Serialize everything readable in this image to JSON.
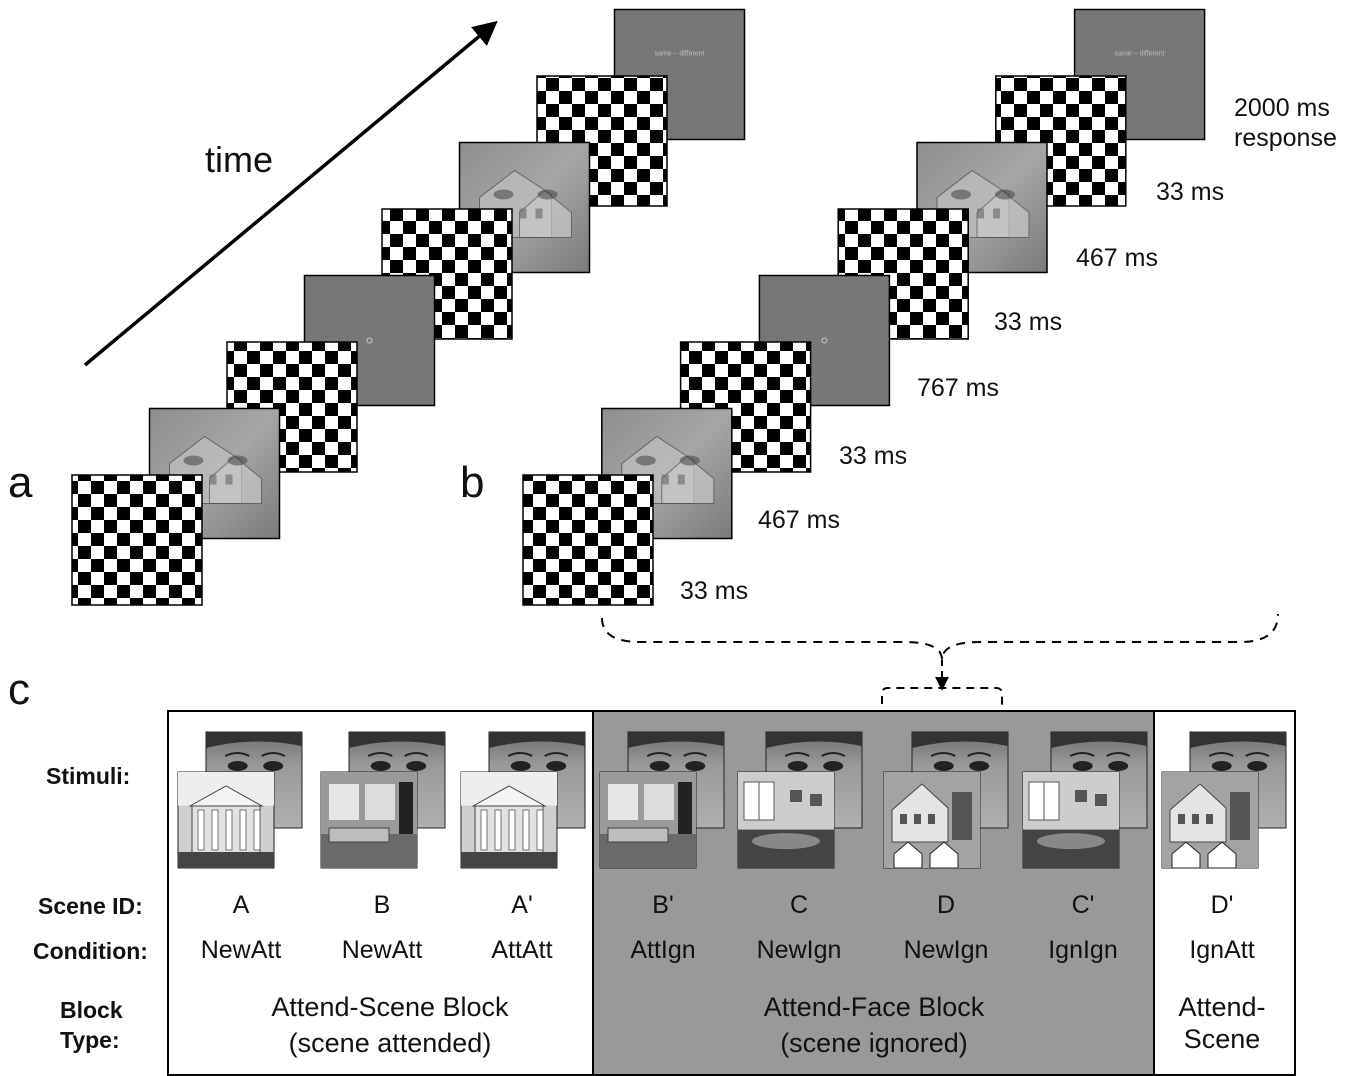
{
  "panels": {
    "a": "a",
    "b": "b",
    "c": "c"
  },
  "time_label": "time",
  "panel_a_sequence": [
    "mask",
    "composite",
    "mask",
    "fixation",
    "mask",
    "composite",
    "mask",
    "response"
  ],
  "panel_b_sequence": [
    "mask",
    "composite",
    "mask",
    "fixation",
    "mask",
    "composite",
    "mask",
    "response"
  ],
  "response_screen_text": "same – different",
  "durations": [
    "33 ms",
    "467 ms",
    "33 ms",
    "767 ms",
    "33 ms",
    "467 ms",
    "33 ms"
  ],
  "response_duration": {
    "line1": "2000 ms",
    "line2": "response"
  },
  "row_headers": {
    "stimuli": "Stimuli:",
    "scene_id": "Scene ID:",
    "condition": "Condition:",
    "block_type_1": "Block",
    "block_type_2": "Type:"
  },
  "columns": [
    {
      "scene_id": "A",
      "condition": "NewAtt",
      "scene": "building-columns",
      "face": "face-1"
    },
    {
      "scene_id": "B",
      "condition": "NewAtt",
      "scene": "interior-room",
      "face": "face-2"
    },
    {
      "scene_id": "A'",
      "condition": "AttAtt",
      "scene": "building-columns",
      "face": "face-3"
    },
    {
      "scene_id": "B'",
      "condition": "AttIgn",
      "scene": "interior-room",
      "face": "face-4"
    },
    {
      "scene_id": "C",
      "condition": "NewIgn",
      "scene": "room-windows",
      "face": "face-5"
    },
    {
      "scene_id": "D",
      "condition": "NewIgn",
      "scene": "house-gables",
      "face": "face-6"
    },
    {
      "scene_id": "C'",
      "condition": "IgnIgn",
      "scene": "room-windows",
      "face": "face-7"
    },
    {
      "scene_id": "D'",
      "condition": "IgnAtt",
      "scene": "house-gables",
      "face": "face-8"
    }
  ],
  "blocks": [
    {
      "line1": "Attend-Scene Block",
      "line2": "(scene attended)",
      "fill": "#ffffff"
    },
    {
      "line1": "Attend-Face Block",
      "line2": "(scene ignored)",
      "fill": "#999999"
    },
    {
      "line1": "Attend-",
      "line2": "Scene",
      "fill": "#ffffff"
    }
  ],
  "colors": {
    "mask_dark": "#000000",
    "mask_light": "#ffffff",
    "fixation_bg": "#777777",
    "attend_face_bg": "#999999"
  }
}
